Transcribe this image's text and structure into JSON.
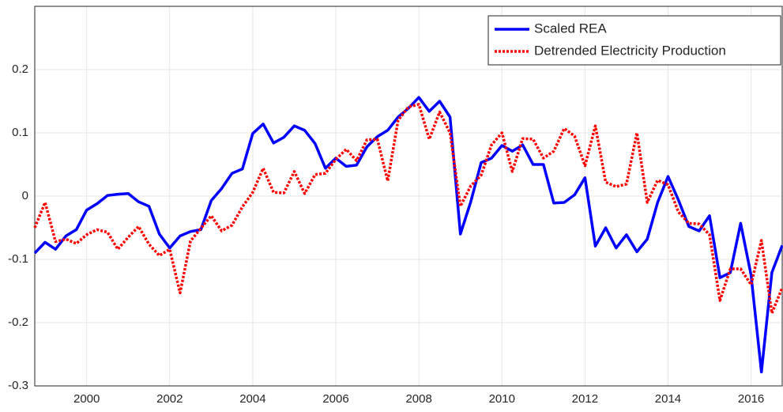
{
  "chart_data": {
    "type": "line",
    "x": [
      1998.75,
      1999,
      1999.25,
      1999.5,
      1999.75,
      2000,
      2000.25,
      2000.5,
      2000.75,
      2001,
      2001.25,
      2001.5,
      2001.75,
      2002,
      2002.25,
      2002.5,
      2002.75,
      2003,
      2003.25,
      2003.5,
      2003.75,
      2004,
      2004.25,
      2004.5,
      2004.75,
      2005,
      2005.25,
      2005.5,
      2005.75,
      2006,
      2006.25,
      2006.5,
      2006.75,
      2007,
      2007.25,
      2007.5,
      2007.75,
      2008,
      2008.25,
      2008.5,
      2008.75,
      2009,
      2009.25,
      2009.5,
      2009.75,
      2010,
      2010.25,
      2010.5,
      2010.75,
      2011,
      2011.25,
      2011.5,
      2011.75,
      2012,
      2012.25,
      2012.5,
      2012.75,
      2013,
      2013.25,
      2013.5,
      2013.75,
      2014,
      2014.25,
      2014.5,
      2014.75,
      2015,
      2015.25,
      2015.5,
      2015.75,
      2016,
      2016.25,
      2016.5,
      2016.75
    ],
    "series": [
      {
        "name": "Scaled REA",
        "color": "#0000ff",
        "dash": false,
        "values": [
          -0.09,
          -0.073,
          -0.084,
          -0.063,
          -0.053,
          -0.022,
          -0.012,
          0.001,
          0.003,
          0.004,
          -0.009,
          -0.016,
          -0.06,
          -0.082,
          -0.063,
          -0.056,
          -0.053,
          -0.007,
          0.012,
          0.036,
          0.043,
          0.099,
          0.114,
          0.084,
          0.093,
          0.111,
          0.104,
          0.083,
          0.044,
          0.06,
          0.047,
          0.049,
          0.078,
          0.094,
          0.104,
          0.125,
          0.139,
          0.156,
          0.134,
          0.15,
          0.125,
          -0.06,
          -0.009,
          0.053,
          0.06,
          0.08,
          0.071,
          0.081,
          0.05,
          0.05,
          -0.011,
          -0.01,
          0.002,
          0.029,
          -0.079,
          -0.05,
          -0.082,
          -0.061,
          -0.088,
          -0.068,
          -0.01,
          0.031,
          -0.006,
          -0.048,
          -0.055,
          -0.031,
          -0.129,
          -0.121,
          -0.043,
          -0.125,
          -0.278,
          -0.121,
          -0.078
        ]
      },
      {
        "name": "Detrended Electricity Production",
        "color": "#ff0000",
        "dash": true,
        "values": [
          -0.05,
          -0.01,
          -0.072,
          -0.068,
          -0.075,
          -0.061,
          -0.053,
          -0.057,
          -0.084,
          -0.065,
          -0.048,
          -0.076,
          -0.094,
          -0.084,
          -0.153,
          -0.071,
          -0.051,
          -0.031,
          -0.055,
          -0.046,
          -0.017,
          0.006,
          0.044,
          0.006,
          0.005,
          0.039,
          0.004,
          0.034,
          0.036,
          0.058,
          0.074,
          0.056,
          0.089,
          0.09,
          0.024,
          0.12,
          0.141,
          0.145,
          0.09,
          0.133,
          0.1,
          -0.016,
          0.016,
          0.033,
          0.081,
          0.1,
          0.039,
          0.091,
          0.09,
          0.06,
          0.071,
          0.107,
          0.095,
          0.048,
          0.111,
          0.022,
          0.015,
          0.019,
          0.1,
          -0.01,
          0.025,
          0.018,
          -0.025,
          -0.043,
          -0.044,
          -0.061,
          -0.165,
          -0.115,
          -0.115,
          -0.14,
          -0.07,
          -0.185,
          -0.145
        ]
      }
    ],
    "xlim": [
      1998.75,
      2016.75
    ],
    "xticks": [
      2000,
      2002,
      2004,
      2006,
      2008,
      2010,
      2012,
      2014,
      2016
    ],
    "ylim": [
      -0.3,
      0.3
    ],
    "yticks": [
      -0.3,
      -0.2,
      -0.1,
      0,
      0.1,
      0.2
    ],
    "grid": true,
    "legend": "top-right"
  }
}
